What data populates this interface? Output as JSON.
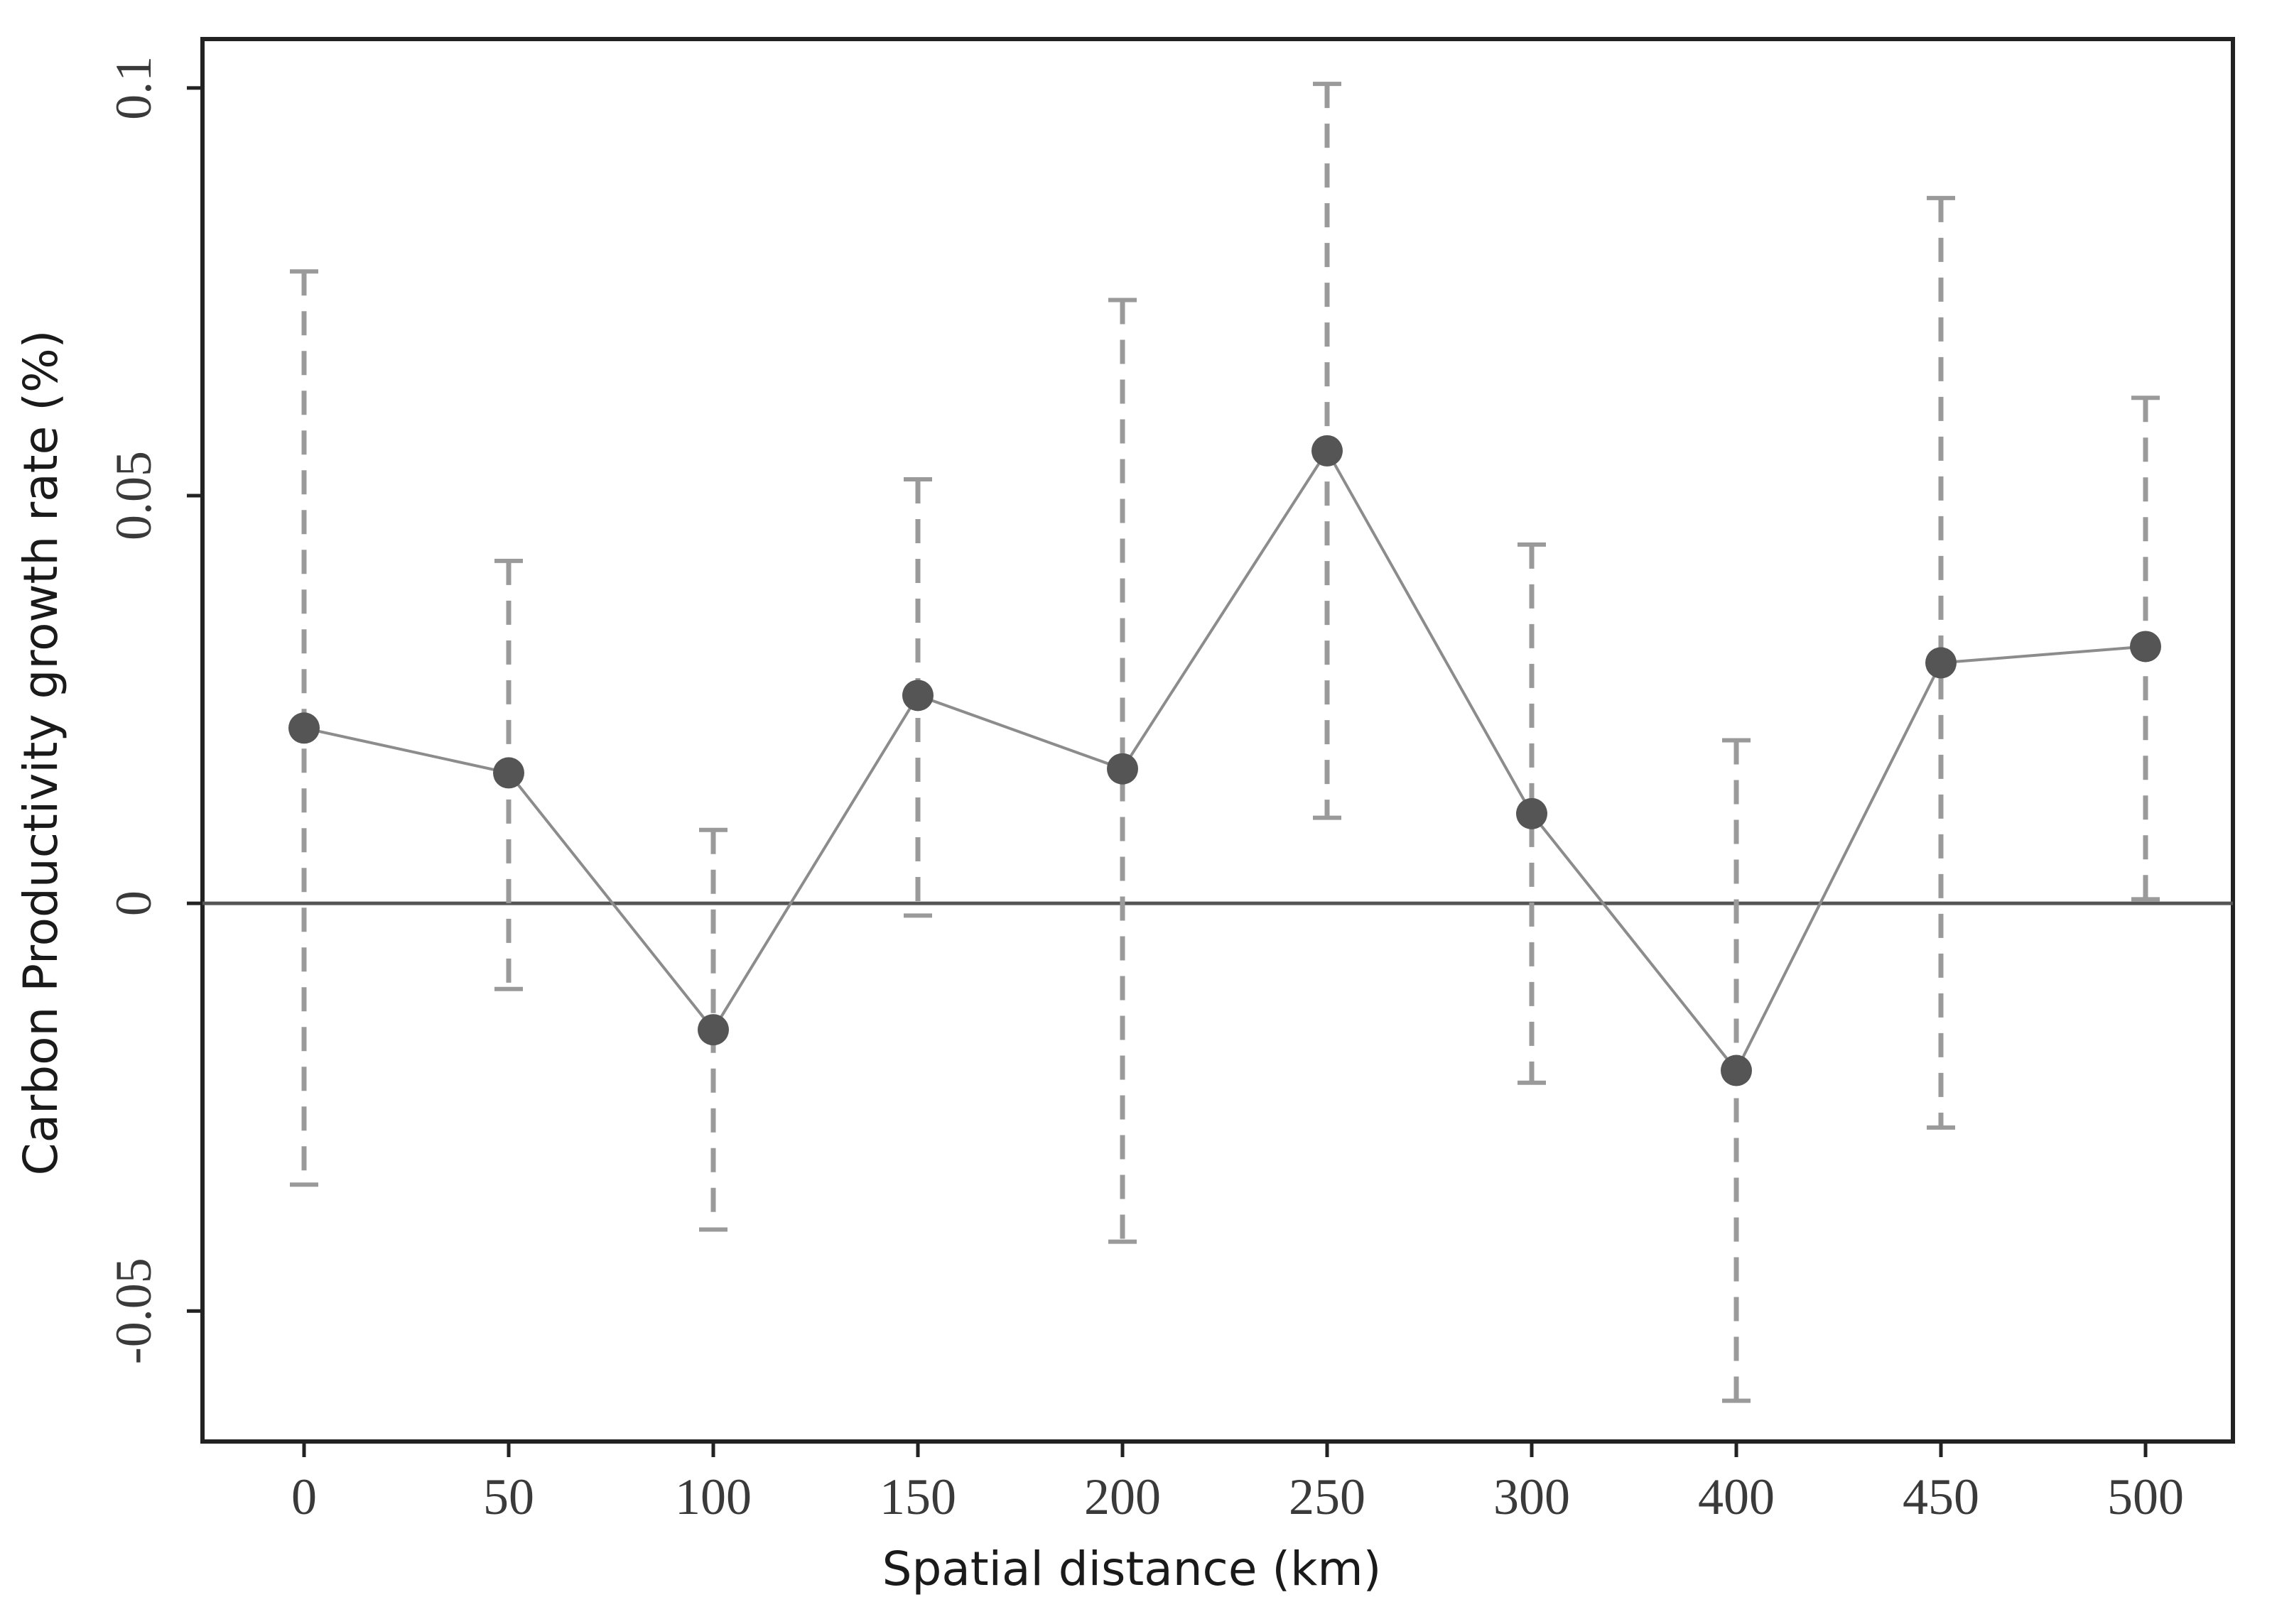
{
  "chart_data": {
    "type": "line",
    "title": "",
    "xlabel": "Spatial distance (km)",
    "ylabel": "Carbon Productivity growth rate (%)",
    "categories": [
      "0",
      "50",
      "100",
      "150",
      "200",
      "250",
      "300",
      "400",
      "450",
      "500"
    ],
    "y_ticks": [
      "-0.05",
      "0",
      "0.05",
      "0.1"
    ],
    "ylim": [
      -0.066,
      0.106
    ],
    "reference_line_y": 0,
    "grid": false,
    "series": [
      {
        "values": [
          0.0215,
          0.016,
          -0.0155,
          0.0255,
          0.0165,
          0.0555,
          0.011,
          -0.0205,
          0.0295,
          0.0315
        ],
        "error_low": [
          -0.0345,
          -0.0105,
          -0.04,
          -0.0015,
          -0.0415,
          0.0105,
          -0.022,
          -0.061,
          -0.0275,
          0.0005
        ],
        "error_high": [
          0.0775,
          0.042,
          0.009,
          0.052,
          0.074,
          0.1005,
          0.044,
          0.02,
          0.0865,
          0.062
        ],
        "marker": "circle",
        "error_style": "dashed"
      }
    ],
    "colors": {
      "line": "#8c8c8c",
      "marker": "#555555",
      "error_bar": "#9a9a9a",
      "zero_line": "#555555",
      "frame": "#222222"
    }
  }
}
